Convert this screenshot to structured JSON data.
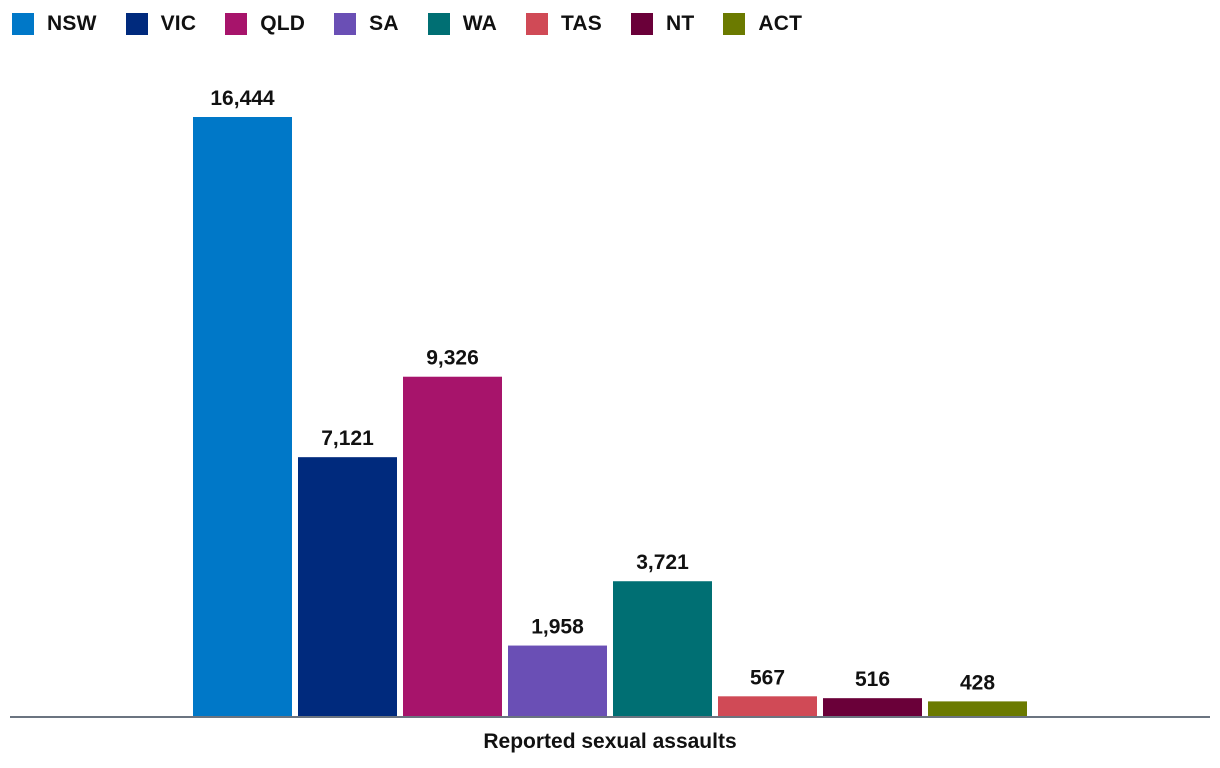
{
  "chart_data": {
    "type": "bar",
    "categories": [
      "NSW",
      "VIC",
      "QLD",
      "SA",
      "WA",
      "TAS",
      "NT",
      "ACT"
    ],
    "values": [
      16444,
      7121,
      9326,
      1958,
      3721,
      567,
      516,
      428
    ],
    "value_labels": [
      "16,444",
      "7,121",
      "9,326",
      "1,958",
      "3,721",
      "567",
      "516",
      "428"
    ],
    "colors": [
      "#0078c8",
      "#002a7d",
      "#a7146b",
      "#6a4fb5",
      "#006f73",
      "#d04a56",
      "#6a0039",
      "#6b7a00"
    ],
    "title": "",
    "xlabel": "Reported sexual assaults",
    "ylabel": "",
    "ylim": [
      0,
      16444
    ],
    "grid": false,
    "legend_position": "top-left"
  }
}
